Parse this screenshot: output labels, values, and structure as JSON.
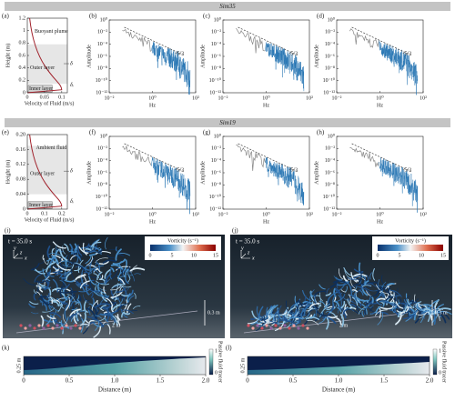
{
  "sections": [
    {
      "title": "Sim35",
      "profile": {
        "label": "(a)",
        "ylabel": "Height (m)",
        "xlabel": "Velocity of Fluid (m/s)",
        "yticks": [
          "0",
          "0.2",
          "0.4",
          "0.6",
          "0.8",
          "1",
          "1.2"
        ],
        "xticks": [
          "0",
          "0.05",
          "0.1"
        ],
        "upper": "Buoyant plume",
        "outer": "Outer layer",
        "inner": "Inner layer",
        "delta": "δ",
        "delta_i": "δᵢ"
      },
      "spectra": [
        "(b)",
        "(c)",
        "(d)"
      ]
    },
    {
      "title": "Sim19",
      "profile": {
        "label": "(e)",
        "ylabel": "Height (m)",
        "xlabel": "Velocity of Fluid (m/s)",
        "yticks": [
          "0",
          "0.04",
          "0.08",
          "0.12",
          "0.16",
          "0.20"
        ],
        "xticks": [
          "0",
          "0.1",
          "0.2"
        ],
        "upper": "Ambient fluid",
        "outer": "Outer layer",
        "inner": "Inner layer",
        "delta": "δ",
        "delta_i": "δᵢ"
      },
      "spectra": [
        "(f)",
        "(g)",
        "(h)"
      ]
    }
  ],
  "spectrum_axes": {
    "ylabel": "Amplitude",
    "xlabel": "Hz",
    "slope": "-5/3",
    "yticks": [
      "10⁰",
      "10⁻²",
      "10⁻⁴",
      "10⁻⁶",
      "10⁻⁸",
      "10⁻¹⁰",
      "10⁻¹²"
    ],
    "xticks": [
      "10⁻²",
      "10⁰",
      "10²"
    ]
  },
  "snapshots": [
    {
      "label": "(i)",
      "time": "t = 35.0 s"
    },
    {
      "label": "(j)",
      "time": "t = 35.0 s"
    }
  ],
  "snapshot_common": {
    "colorbar_title": "Vorticity (s⁻¹)",
    "colorbar_ticks": [
      "0",
      "5",
      "10",
      "15"
    ],
    "scale_v": "0.3 m",
    "scale_h": "2 m",
    "axes": [
      "y",
      "z",
      "x"
    ]
  },
  "tracer_maps": [
    {
      "label": "(k)"
    },
    {
      "label": "(l)"
    }
  ],
  "tracer_common": {
    "height": "0.25 m",
    "xlabel": "Distance (m)",
    "xticks": [
      "0",
      "0.5",
      "1.0",
      "1.5",
      "2.0"
    ],
    "colorbar_title": "Passive fluid tracer",
    "colorbar_ticks": [
      "1",
      "0"
    ]
  }
}
